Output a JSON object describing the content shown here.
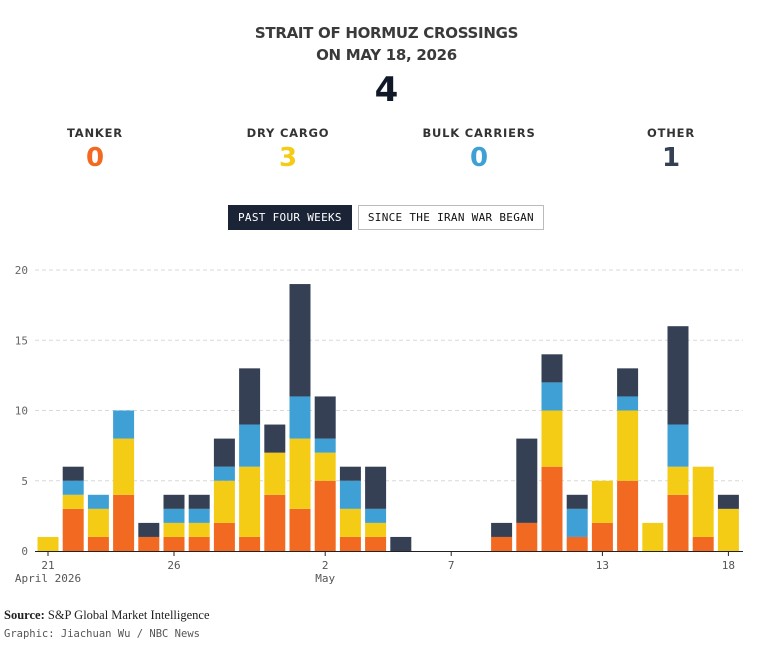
{
  "header": {
    "title_line1": "STRAIT OF HORMUZ CROSSINGS",
    "title_line2": "ON MAY 18, 2026",
    "total": "4"
  },
  "categories": [
    {
      "label": "TANKER",
      "value": "0",
      "color": "#f26a21"
    },
    {
      "label": "DRY CARGO",
      "value": "3",
      "color": "#f4cc16"
    },
    {
      "label": "BULK CARRIERS",
      "value": "0",
      "color": "#3fa0d6"
    },
    {
      "label": "OTHER",
      "value": "1",
      "color": "#364055"
    }
  ],
  "toggle": {
    "active_label": "PAST FOUR WEEKS",
    "inactive_label": "SINCE THE IRAN WAR BEGAN"
  },
  "chart_data": {
    "type": "bar",
    "stacked": true,
    "categories": [
      "Apr 21",
      "Apr 22",
      "Apr 23",
      "Apr 24",
      "Apr 25",
      "Apr 26",
      "Apr 27",
      "Apr 28",
      "Apr 29",
      "Apr 30",
      "May 1",
      "May 2",
      "May 3",
      "May 4",
      "May 5",
      "May 6",
      "May 7",
      "May 8",
      "May 9",
      "May 10",
      "May 11",
      "May 12",
      "May 13",
      "May 14",
      "May 15",
      "May 16",
      "May 17",
      "May 18"
    ],
    "series": [
      {
        "name": "TANKER",
        "color": "#f26a21",
        "values": [
          0,
          3,
          1,
          4,
          1,
          1,
          1,
          2,
          1,
          4,
          3,
          5,
          1,
          1,
          0,
          0,
          0,
          0,
          1,
          2,
          6,
          1,
          2,
          5,
          0,
          4,
          1,
          0
        ]
      },
      {
        "name": "DRY CARGO",
        "color": "#f4cc16",
        "values": [
          1,
          1,
          2,
          4,
          0,
          1,
          1,
          3,
          5,
          3,
          5,
          2,
          2,
          1,
          0,
          0,
          0,
          0,
          0,
          0,
          4,
          0,
          3,
          5,
          2,
          2,
          5,
          3
        ]
      },
      {
        "name": "BULK CARRIERS",
        "color": "#3fa0d6",
        "values": [
          0,
          1,
          1,
          2,
          0,
          1,
          1,
          1,
          3,
          0,
          3,
          1,
          2,
          1,
          0,
          0,
          0,
          0,
          0,
          0,
          2,
          2,
          0,
          1,
          0,
          3,
          0,
          0
        ]
      },
      {
        "name": "OTHER",
        "color": "#364055",
        "values": [
          0,
          1,
          0,
          0,
          1,
          1,
          1,
          2,
          4,
          2,
          8,
          3,
          1,
          3,
          1,
          0,
          0,
          0,
          1,
          6,
          2,
          1,
          0,
          2,
          0,
          7,
          0,
          1
        ]
      }
    ],
    "ylim": [
      0,
      20
    ],
    "yticks": [
      0,
      5,
      10,
      15,
      20
    ],
    "xticks": [
      {
        "label": "21",
        "sublabel": "April 2026",
        "index": 0
      },
      {
        "label": "26",
        "sublabel": "",
        "index": 5
      },
      {
        "label": "2",
        "sublabel": "May",
        "index": 11
      },
      {
        "label": "7",
        "sublabel": "",
        "index": 16
      },
      {
        "label": "13",
        "sublabel": "",
        "index": 22
      },
      {
        "label": "18",
        "sublabel": "",
        "index": 27
      }
    ],
    "grid": true
  },
  "footer": {
    "source_label": "Source:",
    "source_text": "S&P Global Market Intelligence",
    "credit": "Graphic: Jiachuan Wu / NBC News"
  }
}
